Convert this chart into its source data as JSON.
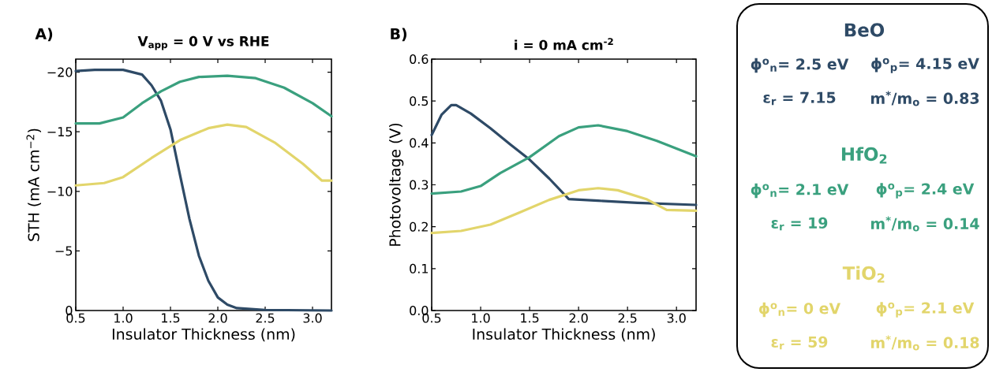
{
  "chart_data": [
    {
      "type": "line",
      "title": "V$_{app}$ = 0 V vs RHE",
      "xlabel": "Insulator Thickness (nm)",
      "ylabel": "STH (mA cm$^{−2}$)",
      "annotations": [
        "A)"
      ],
      "xlim": [
        0.5,
        3.2
      ],
      "ylim": [
        0,
        -21.1
      ],
      "xticks": [
        {
          "value": 0.5,
          "label": "0.5"
        },
        {
          "value": 1,
          "label": "1.0"
        },
        {
          "value": 1.5,
          "label": "1.5"
        },
        {
          "value": 2,
          "label": "2.0"
        },
        {
          "value": 2.5,
          "label": "2.5"
        },
        {
          "value": 3,
          "label": "3.0"
        }
      ],
      "yticks": [
        {
          "value": 0,
          "label": "0"
        },
        {
          "value": -5,
          "label": "−5"
        },
        {
          "value": -10,
          "label": "−10"
        },
        {
          "value": -15,
          "label": "−15"
        },
        {
          "value": -20,
          "label": "−20"
        }
      ],
      "series": [
        {
          "color": "#2e4a66",
          "x": [
            0.5,
            0.7,
            1.0,
            1.2,
            1.3,
            1.4,
            1.5,
            1.6,
            1.7,
            1.8,
            1.9,
            2.0,
            2.1,
            2.2,
            2.5,
            3.2
          ],
          "values": [
            -20.1,
            -20.2,
            -20.2,
            -19.8,
            -18.9,
            -17.6,
            -15.2,
            -11.4,
            -7.7,
            -4.6,
            -2.5,
            -1.1,
            -0.5,
            -0.2,
            -0.05,
            0
          ]
        },
        {
          "color": "#3aa07e",
          "x": [
            0.5,
            0.75,
            1.0,
            1.2,
            1.4,
            1.6,
            1.8,
            2.1,
            2.4,
            2.7,
            3.0,
            3.2
          ],
          "values": [
            -15.7,
            -15.7,
            -16.2,
            -17.4,
            -18.4,
            -19.2,
            -19.6,
            -19.7,
            -19.5,
            -18.7,
            -17.4,
            -16.3
          ]
        },
        {
          "color": "#e2d56b",
          "x": [
            0.5,
            0.8,
            1.0,
            1.3,
            1.6,
            1.9,
            2.1,
            2.3,
            2.6,
            2.9,
            3.1,
            3.2
          ],
          "values": [
            -10.5,
            -10.7,
            -11.2,
            -12.8,
            -14.3,
            -15.3,
            -15.6,
            -15.4,
            -14.1,
            -12.3,
            -10.9,
            -10.9
          ]
        }
      ]
    },
    {
      "type": "line",
      "title": "i = 0 mA cm$^{-2}$",
      "xlabel": "Insulator Thickness (nm)",
      "ylabel": "Photovoltage (V)",
      "annotations": [
        "B)"
      ],
      "xlim": [
        0.5,
        3.2
      ],
      "ylim": [
        0,
        0.6
      ],
      "xticks": [
        {
          "value": 0.5,
          "label": "0.5"
        },
        {
          "value": 1,
          "label": "1.0"
        },
        {
          "value": 1.5,
          "label": "1.5"
        },
        {
          "value": 2,
          "label": "2.0"
        },
        {
          "value": 2.5,
          "label": "2.5"
        },
        {
          "value": 3,
          "label": "3.0"
        }
      ],
      "yticks": [
        {
          "value": 0,
          "label": "0.0"
        },
        {
          "value": 0.1,
          "label": "0.1"
        },
        {
          "value": 0.2,
          "label": "0.2"
        },
        {
          "value": 0.3,
          "label": "0.3"
        },
        {
          "value": 0.4,
          "label": "0.4"
        },
        {
          "value": 0.5,
          "label": "0.5"
        },
        {
          "value": 0.6,
          "label": "0.6"
        }
      ],
      "series": [
        {
          "color": "#2e4a66",
          "x": [
            0.5,
            0.6,
            0.7,
            0.75,
            0.9,
            1.1,
            1.3,
            1.5,
            1.7,
            1.9,
            2.2,
            2.6,
            3.2
          ],
          "values": [
            0.419,
            0.467,
            0.49,
            0.49,
            0.47,
            0.435,
            0.397,
            0.36,
            0.315,
            0.266,
            0.262,
            0.257,
            0.252
          ]
        },
        {
          "color": "#3aa07e",
          "x": [
            0.5,
            0.8,
            1.0,
            1.2,
            1.5,
            1.8,
            2.0,
            2.2,
            2.5,
            2.8,
            3.2
          ],
          "values": [
            0.279,
            0.284,
            0.297,
            0.328,
            0.366,
            0.416,
            0.437,
            0.442,
            0.428,
            0.405,
            0.368
          ]
        },
        {
          "color": "#e2d56b",
          "x": [
            0.5,
            0.8,
            1.1,
            1.4,
            1.7,
            2.0,
            2.2,
            2.4,
            2.7,
            2.9,
            3.2
          ],
          "values": [
            0.185,
            0.19,
            0.205,
            0.234,
            0.264,
            0.287,
            0.292,
            0.287,
            0.265,
            0.24,
            0.238
          ]
        }
      ]
    },
    {
      "type": "other",
      "categories": [
        "BeO",
        "HfO$_{2}$",
        "TiO$_{2}$"
      ],
      "colors": [
        "#2e4a66",
        "#3aa07e",
        "#e2d56b"
      ],
      "annotations": [
        "ϕ$^{o}$$_{n}$= 2.5 eV",
        "ϕ$^{o}$$_{p}$= 4.15 eV",
        "ε$_{r}$ = 7.15",
        "m$^{*}$/m$_{o}$ = 0.83",
        "ϕ$^{o}$$_{n}$= 2.1 eV",
        "ϕ$^{o}$$_{p}$= 2.4 eV",
        "ε$_{r}$ = 19",
        "m$^{*}$/m$_{o}$ = 0.14",
        "ϕ$^{o}$$_{n}$= 0 eV",
        "ϕ$^{o}$$_{p}$= 2.1 eV",
        "ε$_{r}$ = 59",
        "m$^{*}$/m$_{o}$ = 0.18"
      ]
    }
  ]
}
